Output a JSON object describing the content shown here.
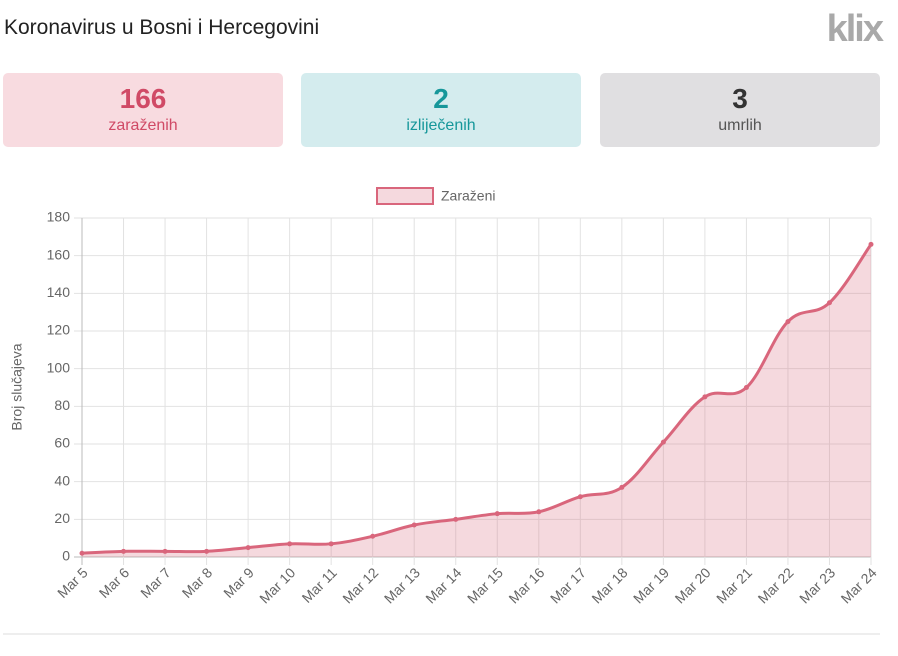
{
  "header": {
    "title": "Koronavirus u Bosni i Hercegovini",
    "logo": "klix"
  },
  "stats": [
    {
      "value": 166,
      "label": "zaraženih"
    },
    {
      "value": 2,
      "label": "izliječenih"
    },
    {
      "value": 3,
      "label": "umrlih"
    }
  ],
  "chart_data": {
    "type": "line",
    "ylabel": "Broj slučajeva",
    "categories": [
      "Mar 5",
      "Mar 6",
      "Mar 7",
      "Mar 8",
      "Mar 9",
      "Mar 10",
      "Mar 11",
      "Mar 12",
      "Mar 13",
      "Mar 14",
      "Mar 15",
      "Mar 16",
      "Mar 17",
      "Mar 18",
      "Mar 19",
      "Mar 20",
      "Mar 21",
      "Mar 22",
      "Mar 23",
      "Mar 24"
    ],
    "series": [
      {
        "name": "Zaraženi",
        "color": "#d9667c",
        "values": [
          2,
          3,
          3,
          3,
          5,
          7,
          7,
          11,
          17,
          20,
          23,
          24,
          32,
          37,
          61,
          85,
          90,
          125,
          135,
          166
        ]
      }
    ],
    "ylim": [
      0,
      180
    ],
    "yticks": [
      0,
      20,
      40,
      60,
      80,
      100,
      120,
      140,
      160,
      180
    ],
    "grid": true,
    "legend": "top",
    "fill": true
  }
}
